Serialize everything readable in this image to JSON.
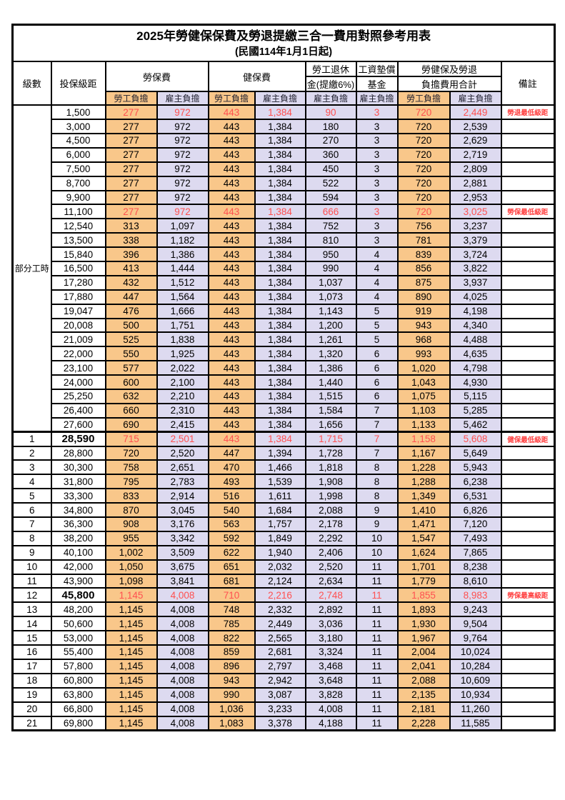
{
  "title": "2025年勞健保保費及勞退提繳三合一費用對照參考用表",
  "subtitle": "(民國114年1月1日起)",
  "columns": {
    "level": "級數",
    "bracket": "投保級距",
    "labor_insurance": "勞保費",
    "health_insurance": "健保費",
    "pension_line1": "勞工退休",
    "pension_line2": "金(提繳6%)",
    "wage_fund_line1": "工資墊償",
    "wage_fund_line2": "基金",
    "total_line1": "勞健保及勞退",
    "total_line2": "負擔費用合計",
    "remark": "備註",
    "employee": "勞工負擔",
    "employer": "雇主負擔"
  },
  "part_time": {
    "label": "部分工時",
    "rowspan": 23
  },
  "colors": {
    "employee_bg": "#F9C78A",
    "employer_bg": "#DDDAF0",
    "highlight_text": "#FF5050",
    "remark_text": "#FF4040",
    "border": "#000000"
  },
  "rows": [
    {
      "level": "",
      "bracket": "1,500",
      "values": [
        "277",
        "972",
        "443",
        "1,384",
        "90",
        "3",
        "720",
        "2,449"
      ],
      "remark": "勞退最低級距",
      "highlight": true
    },
    {
      "level": "",
      "bracket": "3,000",
      "values": [
        "277",
        "972",
        "443",
        "1,384",
        "180",
        "3",
        "720",
        "2,539"
      ],
      "remark": ""
    },
    {
      "level": "",
      "bracket": "4,500",
      "values": [
        "277",
        "972",
        "443",
        "1,384",
        "270",
        "3",
        "720",
        "2,629"
      ],
      "remark": ""
    },
    {
      "level": "",
      "bracket": "6,000",
      "values": [
        "277",
        "972",
        "443",
        "1,384",
        "360",
        "3",
        "720",
        "2,719"
      ],
      "remark": ""
    },
    {
      "level": "",
      "bracket": "7,500",
      "values": [
        "277",
        "972",
        "443",
        "1,384",
        "450",
        "3",
        "720",
        "2,809"
      ],
      "remark": ""
    },
    {
      "level": "",
      "bracket": "8,700",
      "values": [
        "277",
        "972",
        "443",
        "1,384",
        "522",
        "3",
        "720",
        "2,881"
      ],
      "remark": ""
    },
    {
      "level": "",
      "bracket": "9,900",
      "values": [
        "277",
        "972",
        "443",
        "1,384",
        "594",
        "3",
        "720",
        "2,953"
      ],
      "remark": ""
    },
    {
      "level": "",
      "bracket": "11,100",
      "values": [
        "277",
        "972",
        "443",
        "1,384",
        "666",
        "3",
        "720",
        "3,025"
      ],
      "remark": "勞保最低級距",
      "highlight": true
    },
    {
      "level": "",
      "bracket": "12,540",
      "values": [
        "313",
        "1,097",
        "443",
        "1,384",
        "752",
        "3",
        "756",
        "3,237"
      ],
      "remark": ""
    },
    {
      "level": "",
      "bracket": "13,500",
      "values": [
        "338",
        "1,182",
        "443",
        "1,384",
        "810",
        "3",
        "781",
        "3,379"
      ],
      "remark": ""
    },
    {
      "level": "",
      "bracket": "15,840",
      "values": [
        "396",
        "1,386",
        "443",
        "1,384",
        "950",
        "4",
        "839",
        "3,724"
      ],
      "remark": ""
    },
    {
      "level": "",
      "bracket": "16,500",
      "values": [
        "413",
        "1,444",
        "443",
        "1,384",
        "990",
        "4",
        "856",
        "3,822"
      ],
      "remark": ""
    },
    {
      "level": "",
      "bracket": "17,280",
      "values": [
        "432",
        "1,512",
        "443",
        "1,384",
        "1,037",
        "4",
        "875",
        "3,937"
      ],
      "remark": ""
    },
    {
      "level": "",
      "bracket": "17,880",
      "values": [
        "447",
        "1,564",
        "443",
        "1,384",
        "1,073",
        "4",
        "890",
        "4,025"
      ],
      "remark": ""
    },
    {
      "level": "",
      "bracket": "19,047",
      "values": [
        "476",
        "1,666",
        "443",
        "1,384",
        "1,143",
        "5",
        "919",
        "4,198"
      ],
      "remark": ""
    },
    {
      "level": "",
      "bracket": "20,008",
      "values": [
        "500",
        "1,751",
        "443",
        "1,384",
        "1,200",
        "5",
        "943",
        "4,340"
      ],
      "remark": ""
    },
    {
      "level": "",
      "bracket": "21,009",
      "values": [
        "525",
        "1,838",
        "443",
        "1,384",
        "1,261",
        "5",
        "968",
        "4,488"
      ],
      "remark": ""
    },
    {
      "level": "",
      "bracket": "22,000",
      "values": [
        "550",
        "1,925",
        "443",
        "1,384",
        "1,320",
        "6",
        "993",
        "4,635"
      ],
      "remark": ""
    },
    {
      "level": "",
      "bracket": "23,100",
      "values": [
        "577",
        "2,022",
        "443",
        "1,384",
        "1,386",
        "6",
        "1,020",
        "4,798"
      ],
      "remark": ""
    },
    {
      "level": "",
      "bracket": "24,000",
      "values": [
        "600",
        "2,100",
        "443",
        "1,384",
        "1,440",
        "6",
        "1,043",
        "4,930"
      ],
      "remark": ""
    },
    {
      "level": "",
      "bracket": "25,250",
      "values": [
        "632",
        "2,210",
        "443",
        "1,384",
        "1,515",
        "6",
        "1,075",
        "5,115"
      ],
      "remark": ""
    },
    {
      "level": "",
      "bracket": "26,400",
      "values": [
        "660",
        "2,310",
        "443",
        "1,384",
        "1,584",
        "7",
        "1,103",
        "5,285"
      ],
      "remark": ""
    },
    {
      "level": "",
      "bracket": "27,600",
      "values": [
        "690",
        "2,415",
        "443",
        "1,384",
        "1,656",
        "7",
        "1,133",
        "5,462"
      ],
      "remark": ""
    },
    {
      "level": "1",
      "bracket": "28,590",
      "values": [
        "715",
        "2,501",
        "443",
        "1,384",
        "1,715",
        "7",
        "1,158",
        "5,608"
      ],
      "remark": "健保最低級距",
      "highlight": true,
      "bold_bracket": true,
      "section_start": true
    },
    {
      "level": "2",
      "bracket": "28,800",
      "values": [
        "720",
        "2,520",
        "447",
        "1,394",
        "1,728",
        "7",
        "1,167",
        "5,649"
      ],
      "remark": ""
    },
    {
      "level": "3",
      "bracket": "30,300",
      "values": [
        "758",
        "2,651",
        "470",
        "1,466",
        "1,818",
        "8",
        "1,228",
        "5,943"
      ],
      "remark": ""
    },
    {
      "level": "4",
      "bracket": "31,800",
      "values": [
        "795",
        "2,783",
        "493",
        "1,539",
        "1,908",
        "8",
        "1,288",
        "6,238"
      ],
      "remark": ""
    },
    {
      "level": "5",
      "bracket": "33,300",
      "values": [
        "833",
        "2,914",
        "516",
        "1,611",
        "1,998",
        "8",
        "1,349",
        "6,531"
      ],
      "remark": ""
    },
    {
      "level": "6",
      "bracket": "34,800",
      "values": [
        "870",
        "3,045",
        "540",
        "1,684",
        "2,088",
        "9",
        "1,410",
        "6,826"
      ],
      "remark": ""
    },
    {
      "level": "7",
      "bracket": "36,300",
      "values": [
        "908",
        "3,176",
        "563",
        "1,757",
        "2,178",
        "9",
        "1,471",
        "7,120"
      ],
      "remark": ""
    },
    {
      "level": "8",
      "bracket": "38,200",
      "values": [
        "955",
        "3,342",
        "592",
        "1,849",
        "2,292",
        "10",
        "1,547",
        "7,493"
      ],
      "remark": ""
    },
    {
      "level": "9",
      "bracket": "40,100",
      "values": [
        "1,002",
        "3,509",
        "622",
        "1,940",
        "2,406",
        "10",
        "1,624",
        "7,865"
      ],
      "remark": ""
    },
    {
      "level": "10",
      "bracket": "42,000",
      "values": [
        "1,050",
        "3,675",
        "651",
        "2,032",
        "2,520",
        "11",
        "1,701",
        "8,238"
      ],
      "remark": ""
    },
    {
      "level": "11",
      "bracket": "43,900",
      "values": [
        "1,098",
        "3,841",
        "681",
        "2,124",
        "2,634",
        "11",
        "1,779",
        "8,610"
      ],
      "remark": ""
    },
    {
      "level": "12",
      "bracket": "45,800",
      "values": [
        "1,145",
        "4,008",
        "710",
        "2,216",
        "2,748",
        "11",
        "1,855",
        "8,983"
      ],
      "remark": "勞保最高級距",
      "highlight": true,
      "bold_bracket": true
    },
    {
      "level": "13",
      "bracket": "48,200",
      "values": [
        "1,145",
        "4,008",
        "748",
        "2,332",
        "2,892",
        "11",
        "1,893",
        "9,243"
      ],
      "remark": ""
    },
    {
      "level": "14",
      "bracket": "50,600",
      "values": [
        "1,145",
        "4,008",
        "785",
        "2,449",
        "3,036",
        "11",
        "1,930",
        "9,504"
      ],
      "remark": ""
    },
    {
      "level": "15",
      "bracket": "53,000",
      "values": [
        "1,145",
        "4,008",
        "822",
        "2,565",
        "3,180",
        "11",
        "1,967",
        "9,764"
      ],
      "remark": ""
    },
    {
      "level": "16",
      "bracket": "55,400",
      "values": [
        "1,145",
        "4,008",
        "859",
        "2,681",
        "3,324",
        "11",
        "2,004",
        "10,024"
      ],
      "remark": ""
    },
    {
      "level": "17",
      "bracket": "57,800",
      "values": [
        "1,145",
        "4,008",
        "896",
        "2,797",
        "3,468",
        "11",
        "2,041",
        "10,284"
      ],
      "remark": ""
    },
    {
      "level": "18",
      "bracket": "60,800",
      "values": [
        "1,145",
        "4,008",
        "943",
        "2,942",
        "3,648",
        "11",
        "2,088",
        "10,609"
      ],
      "remark": ""
    },
    {
      "level": "19",
      "bracket": "63,800",
      "values": [
        "1,145",
        "4,008",
        "990",
        "3,087",
        "3,828",
        "11",
        "2,135",
        "10,934"
      ],
      "remark": ""
    },
    {
      "level": "20",
      "bracket": "66,800",
      "values": [
        "1,145",
        "4,008",
        "1,036",
        "3,233",
        "4,008",
        "11",
        "2,181",
        "11,260"
      ],
      "remark": ""
    },
    {
      "level": "21",
      "bracket": "69,800",
      "values": [
        "1,145",
        "4,008",
        "1,083",
        "3,378",
        "4,188",
        "11",
        "2,228",
        "11,585"
      ],
      "remark": ""
    }
  ]
}
